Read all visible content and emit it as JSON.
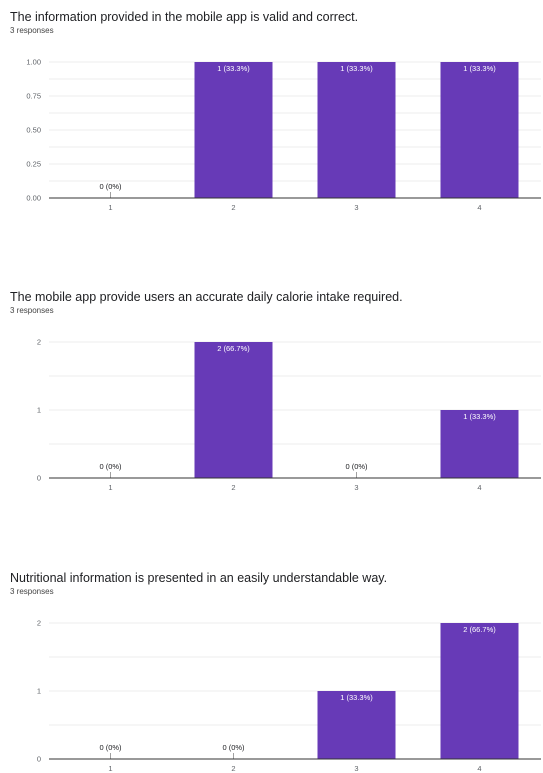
{
  "questions": [
    {
      "title": "The information provided in the mobile app is valid and correct.",
      "responses": "3 responses",
      "y_tick_labels": [
        "1.00",
        "0.75",
        "0.50",
        "0.25",
        "0.00"
      ],
      "bar_labels": [
        "0 (0%)",
        "1 (33.3%)",
        "1 (33.3%)",
        "1 (33.3%)"
      ]
    },
    {
      "title": "The mobile app provide users an accurate daily calorie intake required.",
      "responses": "3 responses",
      "y_tick_labels": [
        "2",
        "1",
        "0"
      ],
      "bar_labels": [
        "0 (0%)",
        "2 (66.7%)",
        "0 (0%)",
        "1 (33.3%)"
      ]
    },
    {
      "title": "Nutritional information is presented in an easily understandable way.",
      "responses": "3 responses",
      "y_tick_labels": [
        "2",
        "1",
        "0"
      ],
      "bar_labels": [
        "0 (0%)",
        "0 (0%)",
        "1 (33.3%)",
        "2 (66.7%)"
      ]
    }
  ],
  "colors": {
    "bar": "#673AB7",
    "grid": "#e6e6e6",
    "axis": "#333333"
  },
  "chart_data": [
    {
      "type": "bar",
      "title": "The information provided in the mobile app is valid and correct.",
      "categories": [
        "1",
        "2",
        "3",
        "4"
      ],
      "values": [
        0,
        1,
        1,
        1
      ],
      "ylim": [
        0,
        1
      ],
      "yticks": [
        0,
        0.25,
        0.5,
        0.75,
        1
      ],
      "grid": true
    },
    {
      "type": "bar",
      "title": "The mobile app provide users an accurate daily calorie intake required.",
      "categories": [
        "1",
        "2",
        "3",
        "4"
      ],
      "values": [
        0,
        2,
        0,
        1
      ],
      "ylim": [
        0,
        2
      ],
      "yticks": [
        0,
        1,
        2
      ],
      "grid": true
    },
    {
      "type": "bar",
      "title": "Nutritional information is presented in an easily understandable way.",
      "categories": [
        "1",
        "2",
        "3",
        "4"
      ],
      "values": [
        0,
        0,
        1,
        2
      ],
      "ylim": [
        0,
        2
      ],
      "yticks": [
        0,
        1,
        2
      ],
      "grid": true
    }
  ]
}
